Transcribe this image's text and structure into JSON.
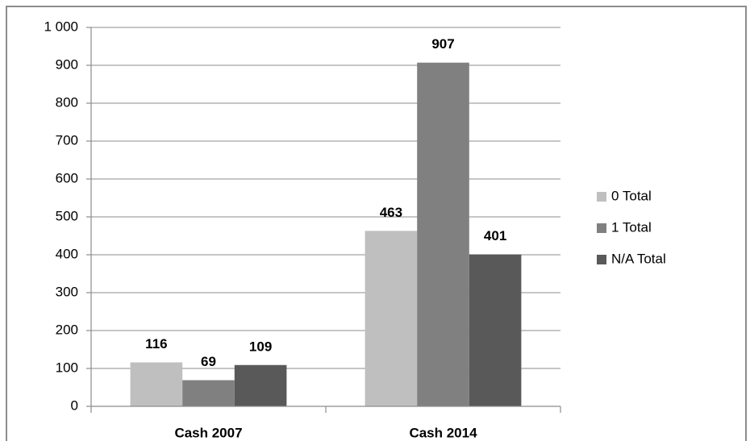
{
  "chart_data": {
    "type": "bar",
    "categories": [
      "Cash 2007",
      "Cash 2014"
    ],
    "series": [
      {
        "name": "0 Total",
        "color": "#bfbfbf",
        "values": [
          116,
          463
        ]
      },
      {
        "name": "1 Total",
        "color": "#808080",
        "values": [
          69,
          907
        ]
      },
      {
        "name": "N/A Total",
        "color": "#595959",
        "values": [
          109,
          401
        ]
      }
    ],
    "ylim": [
      0,
      1000
    ],
    "yticks": [
      0,
      100,
      200,
      300,
      400,
      500,
      600,
      700,
      800,
      900,
      {
        "value": 1000,
        "label": "1 000"
      }
    ],
    "grid": true,
    "legend": "right"
  }
}
